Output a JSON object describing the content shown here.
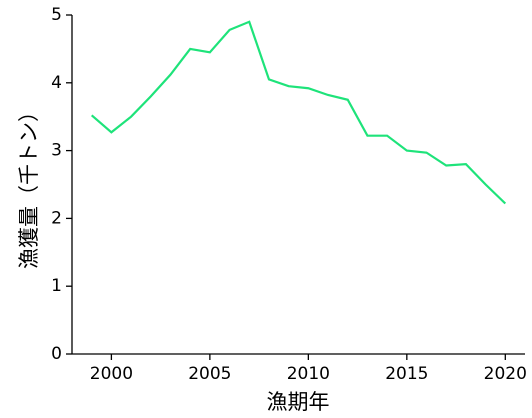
{
  "chart_data": {
    "type": "line",
    "x_label": "漁期年",
    "y_label": "漁獲量（千トン）",
    "x": [
      1999,
      2000,
      2001,
      2002,
      2003,
      2004,
      2005,
      2006,
      2007,
      2008,
      2009,
      2010,
      2011,
      2012,
      2013,
      2014,
      2015,
      2016,
      2017,
      2018,
      2019,
      2020
    ],
    "series": [
      {
        "color": "#1ee37a",
        "values": [
          3.52,
          3.27,
          3.5,
          3.8,
          4.12,
          4.5,
          4.45,
          4.78,
          4.9,
          4.05,
          3.95,
          3.92,
          3.82,
          3.75,
          3.22,
          3.22,
          3.0,
          2.97,
          2.78,
          2.8,
          2.5,
          2.22
        ]
      }
    ],
    "xlim": [
      1998,
      2021
    ],
    "xticks": [
      2000,
      2005,
      2010,
      2015,
      2020
    ],
    "ylim": [
      0,
      5
    ],
    "yticks": [
      0,
      1,
      2,
      3,
      4,
      5
    ]
  }
}
